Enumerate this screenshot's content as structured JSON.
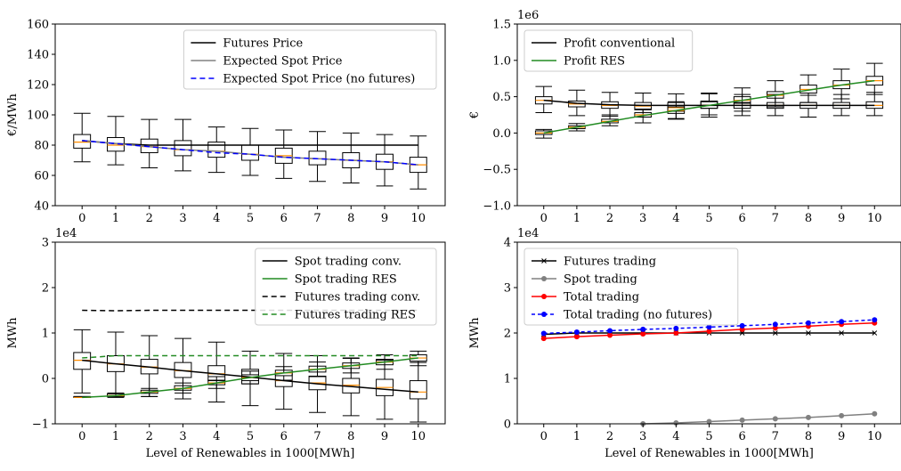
{
  "colors": {
    "black": "#000000",
    "gray": "#808080",
    "blue": "#0000ff",
    "green": "#228b22",
    "orange": "#ff8c00",
    "red": "#ff0000",
    "box_median": "#ff8c00"
  },
  "chart_data": [
    {
      "type": "box",
      "position": "top-left",
      "xlabel": "",
      "ylabel": "€/MWh",
      "xticks": [
        "0",
        "1",
        "2",
        "3",
        "4",
        "5",
        "6",
        "7",
        "8",
        "9",
        "10"
      ],
      "ylim": [
        40,
        160
      ],
      "yticks": [
        "40",
        "60",
        "80",
        "100",
        "120",
        "140",
        "160"
      ],
      "exponent": "",
      "legend_position": "top-right",
      "boxes": [
        {
          "q1": 78,
          "median": 82,
          "q3": 87,
          "wlo": 69,
          "whi": 101
        },
        {
          "q1": 76,
          "median": 80,
          "q3": 85,
          "wlo": 67,
          "whi": 99
        },
        {
          "q1": 75,
          "median": 79,
          "q3": 84,
          "wlo": 65,
          "whi": 97
        },
        {
          "q1": 73,
          "median": 77,
          "q3": 83,
          "wlo": 63,
          "whi": 97
        },
        {
          "q1": 72,
          "median": 76,
          "q3": 82,
          "wlo": 62,
          "whi": 92
        },
        {
          "q1": 70,
          "median": 74,
          "q3": 80,
          "wlo": 60,
          "whi": 91
        },
        {
          "q1": 68,
          "median": 73,
          "q3": 78,
          "wlo": 58,
          "whi": 90
        },
        {
          "q1": 67,
          "median": 71,
          "q3": 76,
          "wlo": 56,
          "whi": 89
        },
        {
          "q1": 65,
          "median": 70,
          "q3": 75,
          "wlo": 55,
          "whi": 88
        },
        {
          "q1": 64,
          "median": 69,
          "q3": 74,
          "wlo": 53,
          "whi": 87
        },
        {
          "q1": 62,
          "median": 67,
          "q3": 72,
          "wlo": 51,
          "whi": 86
        }
      ],
      "series": [
        {
          "name": "Futures Price",
          "color": "#000000",
          "dash": "",
          "marker": "",
          "x": [
            0,
            1,
            2,
            3,
            4,
            5,
            6,
            7,
            8,
            9,
            10
          ],
          "y": [
            83,
            81,
            80,
            80,
            80,
            80,
            80,
            80,
            80,
            80,
            80
          ]
        },
        {
          "name": "Expected Spot Price",
          "color": "#808080",
          "dash": "",
          "marker": "",
          "x": [
            0,
            1,
            2,
            3,
            4,
            5,
            6,
            7,
            8,
            9,
            10
          ],
          "y": [
            83,
            81,
            79,
            77,
            76,
            74,
            72,
            71,
            70,
            69,
            67
          ]
        },
        {
          "name": "Expected Spot Price (no futures)",
          "color": "#0000ff",
          "dash": "6,4",
          "marker": "",
          "x": [
            0,
            1,
            2,
            3,
            4,
            5,
            6,
            7,
            8,
            9,
            10
          ],
          "y": [
            83,
            81,
            79,
            77,
            75,
            74,
            72,
            71,
            70,
            69,
            67
          ]
        }
      ]
    },
    {
      "type": "box",
      "position": "top-right",
      "xlabel": "",
      "ylabel": "€",
      "xticks": [
        "0",
        "1",
        "2",
        "3",
        "4",
        "5",
        "6",
        "7",
        "8",
        "9",
        "10"
      ],
      "ylim": [
        -1.0,
        1.5
      ],
      "yticks": [
        "−1.0",
        "−0.5",
        "0.0",
        "0.5",
        "1.0",
        "1.5"
      ],
      "exponent": "1e6",
      "legend_position": "top-left",
      "boxes": [
        {
          "q1": 0.4,
          "median": 0.45,
          "q3": 0.5,
          "wlo": 0.28,
          "whi": 0.64
        },
        {
          "q1": 0.36,
          "median": 0.4,
          "q3": 0.44,
          "wlo": 0.24,
          "whi": 0.59
        },
        {
          "q1": 0.34,
          "median": 0.38,
          "q3": 0.43,
          "wlo": 0.23,
          "whi": 0.56
        },
        {
          "q1": 0.32,
          "median": 0.37,
          "q3": 0.42,
          "wlo": 0.22,
          "whi": 0.55
        },
        {
          "q1": 0.3,
          "median": 0.35,
          "q3": 0.42,
          "wlo": 0.2,
          "whi": 0.54
        },
        {
          "q1": 0.34,
          "median": 0.38,
          "q3": 0.44,
          "wlo": 0.22,
          "whi": 0.55
        },
        {
          "q1": 0.34,
          "median": 0.38,
          "q3": 0.42,
          "wlo": 0.24,
          "whi": 0.53
        },
        {
          "q1": 0.34,
          "median": 0.38,
          "q3": 0.42,
          "wlo": 0.24,
          "whi": 0.53
        },
        {
          "q1": 0.34,
          "median": 0.38,
          "q3": 0.42,
          "wlo": 0.22,
          "whi": 0.52
        },
        {
          "q1": 0.34,
          "median": 0.38,
          "q3": 0.42,
          "wlo": 0.24,
          "whi": 0.53
        },
        {
          "q1": 0.34,
          "median": 0.38,
          "q3": 0.43,
          "wlo": 0.24,
          "whi": 0.56
        },
        {
          "q1": -0.02,
          "median": 0.0,
          "q3": 0.03,
          "wlo": -0.07,
          "whi": 0.05
        },
        {
          "q1": 0.06,
          "median": 0.08,
          "q3": 0.1,
          "wlo": 0.03,
          "whi": 0.13
        },
        {
          "q1": 0.14,
          "median": 0.16,
          "q3": 0.19,
          "wlo": 0.1,
          "whi": 0.25
        },
        {
          "q1": 0.22,
          "median": 0.25,
          "q3": 0.28,
          "wlo": 0.14,
          "whi": 0.33
        },
        {
          "q1": 0.27,
          "median": 0.31,
          "q3": 0.36,
          "wlo": 0.19,
          "whi": 0.43
        },
        {
          "q1": 0.34,
          "median": 0.38,
          "q3": 0.43,
          "wlo": 0.25,
          "whi": 0.54
        },
        {
          "q1": 0.41,
          "median": 0.45,
          "q3": 0.5,
          "wlo": 0.3,
          "whi": 0.62
        },
        {
          "q1": 0.48,
          "median": 0.52,
          "q3": 0.57,
          "wlo": 0.36,
          "whi": 0.72
        },
        {
          "q1": 0.55,
          "median": 0.6,
          "q3": 0.66,
          "wlo": 0.42,
          "whi": 0.8
        },
        {
          "q1": 0.61,
          "median": 0.66,
          "q3": 0.72,
          "wlo": 0.47,
          "whi": 0.88
        },
        {
          "q1": 0.66,
          "median": 0.72,
          "q3": 0.78,
          "wlo": 0.53,
          "whi": 0.96
        }
      ],
      "box_x": [
        0,
        1,
        2,
        3,
        4,
        5,
        6,
        7,
        8,
        9,
        10,
        0,
        1,
        2,
        3,
        4,
        5,
        6,
        7,
        8,
        9,
        10
      ],
      "series": [
        {
          "name": "Profit conventional",
          "color": "#000000",
          "dash": "",
          "marker": "",
          "x": [
            0,
            1,
            2,
            3,
            4,
            5,
            6,
            7,
            8,
            9,
            10
          ],
          "y": [
            0.45,
            0.41,
            0.39,
            0.38,
            0.38,
            0.38,
            0.38,
            0.38,
            0.38,
            0.38,
            0.38
          ]
        },
        {
          "name": "Profit RES",
          "color": "#228b22",
          "dash": "",
          "marker": "",
          "x": [
            0,
            1,
            2,
            3,
            4,
            5,
            6,
            7,
            8,
            9,
            10
          ],
          "y": [
            0.0,
            0.08,
            0.16,
            0.24,
            0.31,
            0.38,
            0.45,
            0.52,
            0.59,
            0.66,
            0.72
          ]
        }
      ]
    },
    {
      "type": "box",
      "position": "bottom-left",
      "xlabel": "Level of Renewables in 1000[MWh]",
      "ylabel": "MWh",
      "xticks": [
        "0",
        "1",
        "2",
        "3",
        "4",
        "5",
        "6",
        "7",
        "8",
        "9",
        "10"
      ],
      "ylim": [
        -1,
        3
      ],
      "yticks": [
        "−1",
        "0",
        "1",
        "2",
        "3"
      ],
      "exponent": "1e4",
      "legend_position": "top-right",
      "boxes": [
        {
          "q1": 0.2,
          "median": 0.4,
          "q3": 0.57,
          "wlo": -0.32,
          "whi": 1.07
        },
        {
          "q1": 0.15,
          "median": 0.32,
          "q3": 0.5,
          "wlo": -0.38,
          "whi": 1.02
        },
        {
          "q1": 0.1,
          "median": 0.25,
          "q3": 0.42,
          "wlo": -0.4,
          "whi": 0.94
        },
        {
          "q1": 0.02,
          "median": 0.17,
          "q3": 0.35,
          "wlo": -0.45,
          "whi": 0.88
        },
        {
          "q1": -0.05,
          "median": 0.1,
          "q3": 0.28,
          "wlo": -0.52,
          "whi": 0.8
        },
        {
          "q1": -0.12,
          "median": 0.02,
          "q3": 0.2,
          "wlo": -0.6,
          "whi": 0.6
        },
        {
          "q1": -0.18,
          "median": -0.05,
          "q3": 0.12,
          "wlo": -0.68,
          "whi": 0.55
        },
        {
          "q1": -0.25,
          "median": -0.1,
          "q3": 0.05,
          "wlo": -0.75,
          "whi": 0.5
        },
        {
          "q1": -0.32,
          "median": -0.15,
          "q3": 0.0,
          "wlo": -0.82,
          "whi": 0.45
        },
        {
          "q1": -0.38,
          "median": -0.2,
          "q3": -0.02,
          "wlo": -0.9,
          "whi": 0.4
        },
        {
          "q1": -0.45,
          "median": -0.3,
          "q3": -0.05,
          "wlo": -0.96,
          "whi": 0.35
        },
        {
          "q1": -0.42,
          "median": -0.42,
          "q3": -0.4,
          "wlo": -0.42,
          "whi": -0.4
        },
        {
          "q1": -0.4,
          "median": -0.38,
          "q3": -0.34,
          "wlo": -0.42,
          "whi": -0.32
        },
        {
          "q1": -0.33,
          "median": -0.3,
          "q3": -0.26,
          "wlo": -0.4,
          "whi": -0.22
        },
        {
          "q1": -0.26,
          "median": -0.22,
          "q3": -0.16,
          "wlo": -0.32,
          "whi": -0.1
        },
        {
          "q1": -0.14,
          "median": -0.1,
          "q3": -0.04,
          "wlo": -0.22,
          "whi": 0.04
        },
        {
          "q1": -0.05,
          "median": 0.02,
          "q3": 0.08,
          "wlo": -0.12,
          "whi": 0.16
        },
        {
          "q1": 0.06,
          "median": 0.12,
          "q3": 0.18,
          "wlo": -0.04,
          "whi": 0.26
        },
        {
          "q1": 0.14,
          "median": 0.2,
          "q3": 0.27,
          "wlo": 0.04,
          "whi": 0.36
        },
        {
          "q1": 0.22,
          "median": 0.28,
          "q3": 0.34,
          "wlo": 0.12,
          "whi": 0.44
        },
        {
          "q1": 0.3,
          "median": 0.36,
          "q3": 0.42,
          "wlo": 0.2,
          "whi": 0.52
        },
        {
          "q1": 0.38,
          "median": 0.45,
          "q3": 0.52,
          "wlo": 0.28,
          "whi": 0.6
        }
      ],
      "box_x": [
        0,
        1,
        2,
        3,
        4,
        5,
        6,
        7,
        8,
        9,
        10,
        0,
        1,
        2,
        3,
        4,
        5,
        6,
        7,
        8,
        9,
        10
      ],
      "series": [
        {
          "name": "Spot trading conv.",
          "color": "#000000",
          "dash": "",
          "marker": "",
          "x": [
            0,
            1,
            2,
            3,
            4,
            5,
            6,
            7,
            8,
            9,
            10
          ],
          "y": [
            0.4,
            0.32,
            0.25,
            0.17,
            0.1,
            0.03,
            -0.05,
            -0.12,
            -0.18,
            -0.24,
            -0.3
          ]
        },
        {
          "name": "Spot trading RES",
          "color": "#228b22",
          "dash": "",
          "marker": "",
          "x": [
            0,
            1,
            2,
            3,
            4,
            5,
            6,
            7,
            8,
            9,
            10
          ],
          "y": [
            -0.42,
            -0.38,
            -0.3,
            -0.22,
            -0.1,
            0.02,
            0.12,
            0.2,
            0.28,
            0.36,
            0.45
          ]
        },
        {
          "name": "Futures trading conv.",
          "color": "#000000",
          "dash": "6,4",
          "marker": "",
          "x": [
            0,
            1,
            2,
            3,
            4,
            5,
            6,
            7,
            8,
            9,
            10
          ],
          "y": [
            1.5,
            1.49,
            1.5,
            1.5,
            1.5,
            1.5,
            1.5,
            1.5,
            1.5,
            1.5,
            1.5
          ]
        },
        {
          "name": "Futures trading RES",
          "color": "#228b22",
          "dash": "6,4",
          "marker": "",
          "x": [
            0,
            1,
            2,
            3,
            4,
            5,
            6,
            7,
            8,
            9,
            10
          ],
          "y": [
            0.45,
            0.5,
            0.5,
            0.5,
            0.5,
            0.5,
            0.5,
            0.5,
            0.5,
            0.5,
            0.5
          ]
        }
      ]
    },
    {
      "type": "line",
      "position": "bottom-right",
      "xlabel": "Level of Renewables in 1000[MWh]",
      "ylabel": "MWh",
      "xticks": [
        "0",
        "1",
        "2",
        "3",
        "4",
        "5",
        "6",
        "7",
        "8",
        "9",
        "10"
      ],
      "ylim": [
        0,
        4
      ],
      "yticks": [
        "0",
        "1",
        "2",
        "3",
        "4"
      ],
      "exponent": "1e4",
      "legend_position": "top-left",
      "boxes": [],
      "series": [
        {
          "name": "Futures trading",
          "color": "#000000",
          "dash": "",
          "marker": "x",
          "x": [
            0,
            1,
            2,
            3,
            4,
            5,
            6,
            7,
            8,
            9,
            10
          ],
          "y": [
            1.97,
            2.0,
            2.0,
            2.0,
            2.0,
            2.0,
            2.0,
            2.0,
            2.0,
            2.0,
            2.0
          ]
        },
        {
          "name": "Spot trading",
          "color": "#808080",
          "dash": "",
          "marker": "dot",
          "x": [
            3,
            4,
            5,
            6,
            7,
            8,
            9,
            10
          ],
          "y": [
            0.0,
            0.02,
            0.05,
            0.08,
            0.11,
            0.14,
            0.18,
            0.22
          ]
        },
        {
          "name": "Total trading",
          "color": "#ff0000",
          "dash": "",
          "marker": "dot",
          "x": [
            0,
            1,
            2,
            3,
            4,
            5,
            6,
            7,
            8,
            9,
            10
          ],
          "y": [
            1.88,
            1.92,
            1.95,
            1.98,
            2.0,
            2.04,
            2.08,
            2.11,
            2.15,
            2.19,
            2.22
          ]
        },
        {
          "name": "Total trading (no futures)",
          "color": "#0000ff",
          "dash": "4,3",
          "marker": "dot",
          "x": [
            0,
            1,
            2,
            3,
            4,
            5,
            6,
            7,
            8,
            9,
            10
          ],
          "y": [
            1.99,
            2.02,
            2.05,
            2.08,
            2.1,
            2.13,
            2.16,
            2.19,
            2.22,
            2.25,
            2.29
          ]
        }
      ]
    }
  ]
}
